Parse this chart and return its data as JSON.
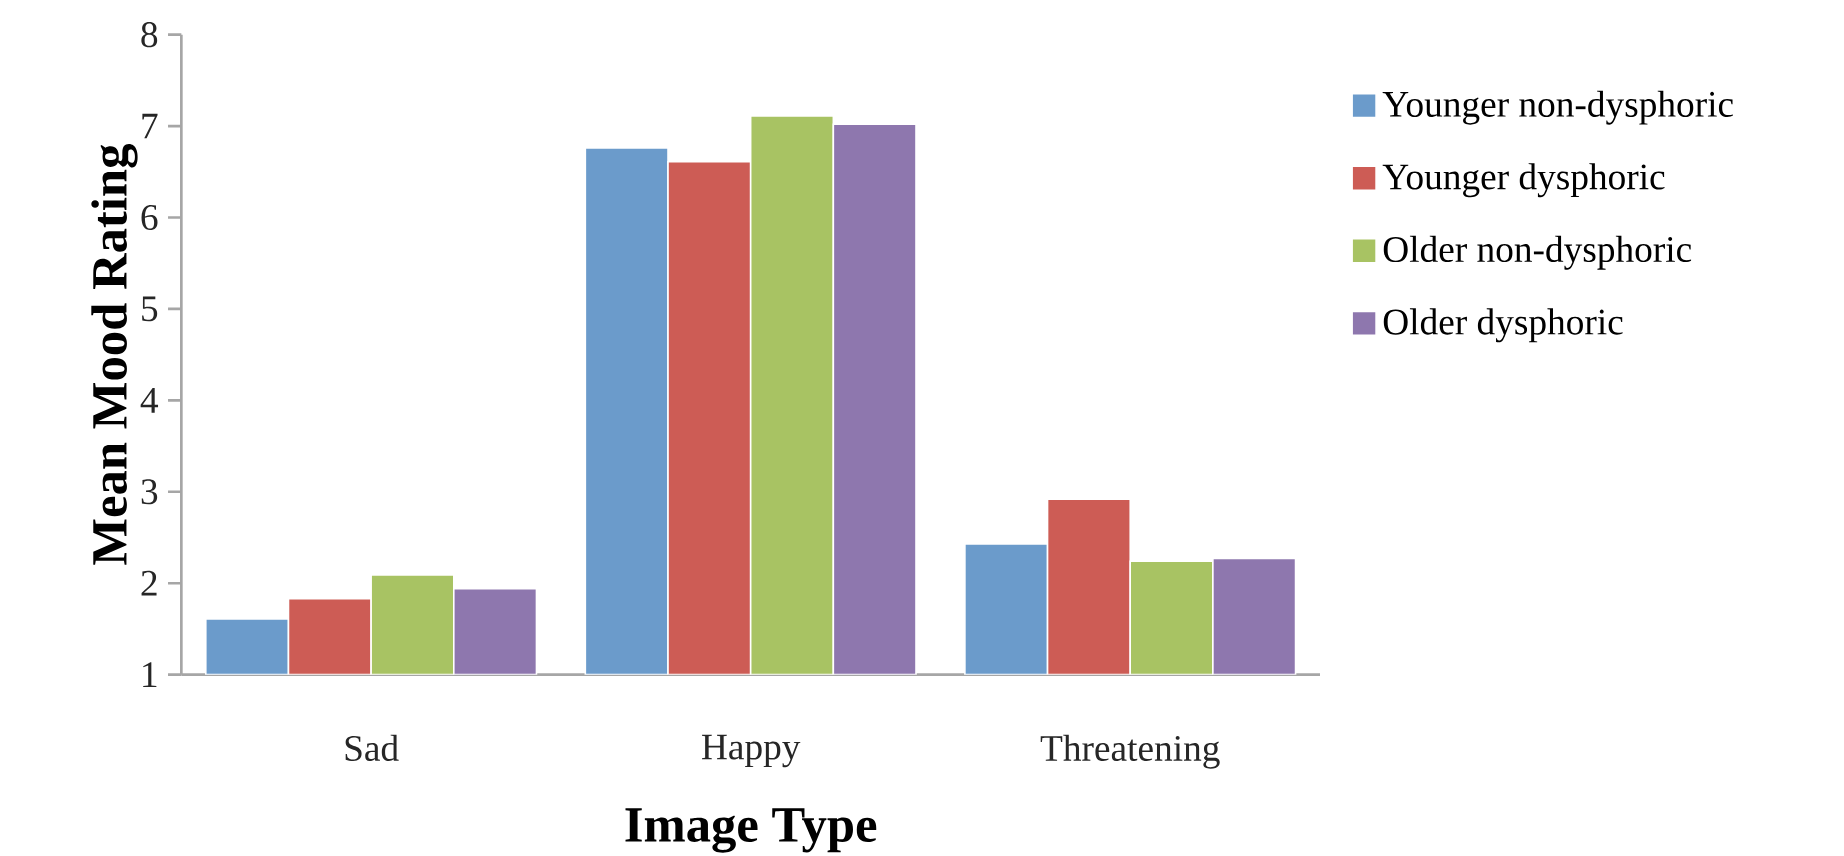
{
  "chart_data": {
    "type": "bar",
    "xlabel": "Image Type",
    "ylabel": "Mean Mood Rating",
    "categories": [
      "Sad",
      "Happy",
      "Threatening"
    ],
    "series": [
      {
        "name": "Younger non-dysphoric",
        "color": "#6b9bcb",
        "values": [
          1.61,
          6.76,
          2.43
        ]
      },
      {
        "name": "Younger dysphoric",
        "color": "#cd5c55",
        "values": [
          1.83,
          6.61,
          2.92
        ]
      },
      {
        "name": "Older non-dysphoric",
        "color": "#a8c363",
        "values": [
          2.09,
          7.11,
          2.24
        ]
      },
      {
        "name": "Older dysphoric",
        "color": "#8e77ae",
        "values": [
          1.94,
          7.02,
          2.27
        ]
      }
    ],
    "ylim": [
      1,
      8
    ],
    "yticks": [
      1,
      2,
      3,
      4,
      5,
      6,
      7,
      8
    ],
    "grid": false,
    "legend": "right"
  }
}
